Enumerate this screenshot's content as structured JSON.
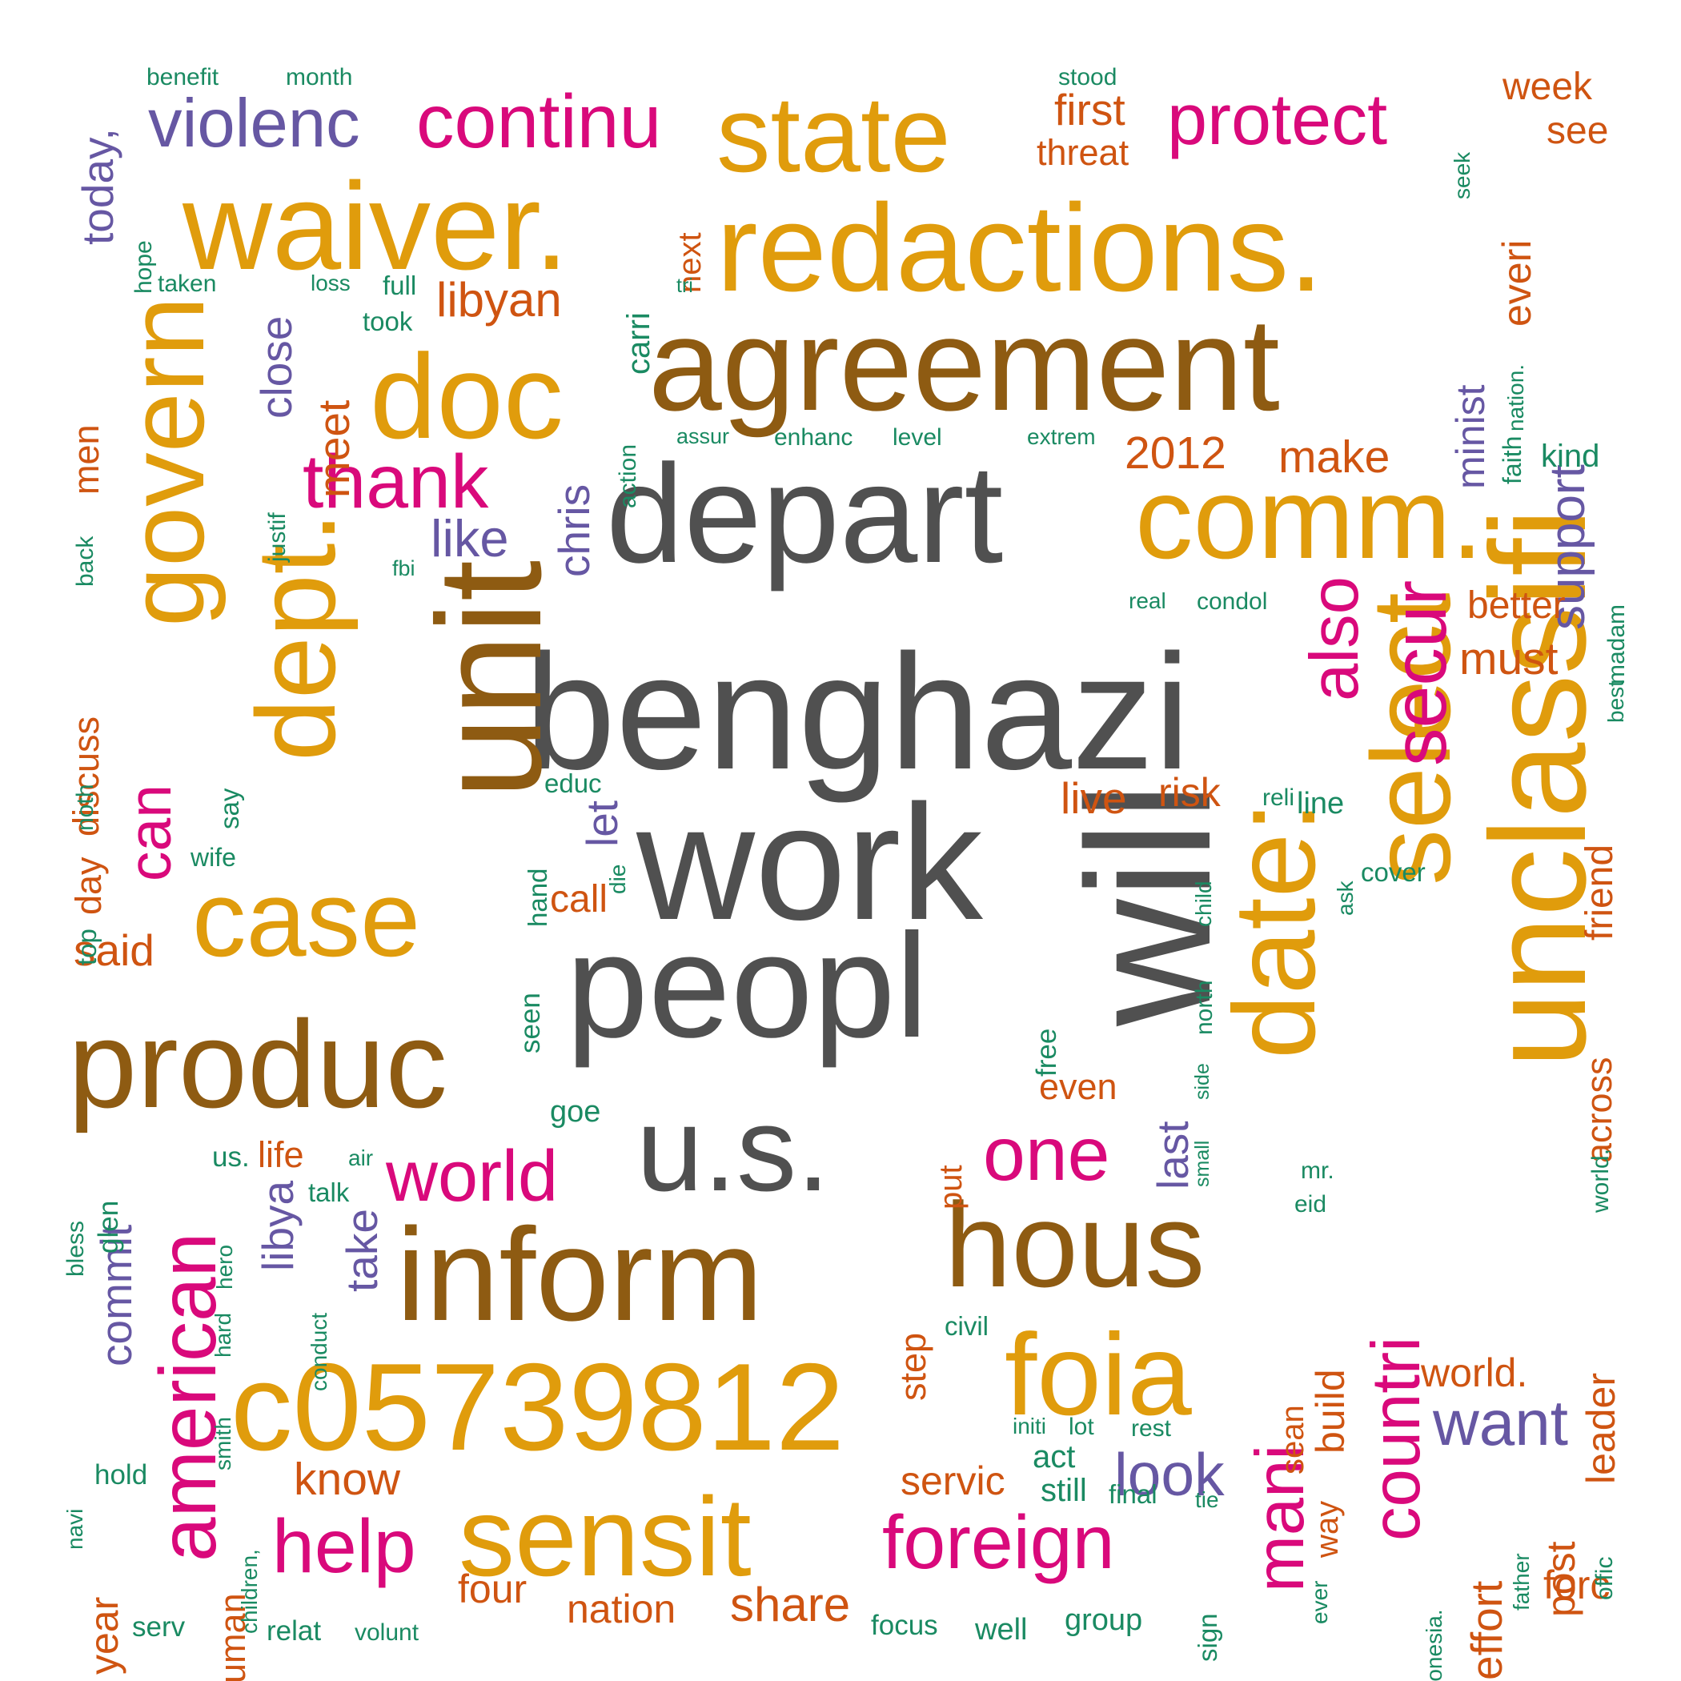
{
  "colors": {
    "gray": "#505050",
    "brown": "#8E5B12",
    "gold": "#E09C0C",
    "pink": "#D9097B",
    "purple": "#6657A3",
    "orange": "#CF5411",
    "green": "#1A8A62"
  },
  "words": [
    {
      "text": "benghazi",
      "color": "gray"
    },
    {
      "text": "work",
      "color": "gray"
    },
    {
      "text": "peopl",
      "color": "gray"
    },
    {
      "text": "depart",
      "color": "gray"
    },
    {
      "text": "will",
      "color": "gray"
    },
    {
      "text": "u.s.",
      "color": "gray"
    },
    {
      "text": "agreement",
      "color": "brown"
    },
    {
      "text": "inform",
      "color": "brown"
    },
    {
      "text": "produc",
      "color": "brown"
    },
    {
      "text": "unit",
      "color": "brown"
    },
    {
      "text": "hous",
      "color": "brown"
    },
    {
      "text": "redactions.",
      "color": "gold"
    },
    {
      "text": "waiver.",
      "color": "gold"
    },
    {
      "text": "state",
      "color": "gold"
    },
    {
      "text": "doc",
      "color": "gold"
    },
    {
      "text": "comm.",
      "color": "gold"
    },
    {
      "text": "govern",
      "color": "gold"
    },
    {
      "text": "dept.",
      "color": "gold"
    },
    {
      "text": "case",
      "color": "gold"
    },
    {
      "text": "c05739812",
      "color": "gold"
    },
    {
      "text": "sensit",
      "color": "gold"
    },
    {
      "text": "foia",
      "color": "gold"
    },
    {
      "text": "date:",
      "color": "gold"
    },
    {
      "text": "select",
      "color": "gold"
    },
    {
      "text": "unclassifi",
      "color": "gold"
    },
    {
      "text": "continu",
      "color": "pink"
    },
    {
      "text": "protect",
      "color": "pink"
    },
    {
      "text": "thank",
      "color": "pink"
    },
    {
      "text": "can",
      "color": "pink"
    },
    {
      "text": "american",
      "color": "pink"
    },
    {
      "text": "world",
      "color": "pink"
    },
    {
      "text": "help",
      "color": "pink"
    },
    {
      "text": "foreign",
      "color": "pink"
    },
    {
      "text": "one",
      "color": "pink"
    },
    {
      "text": "also",
      "color": "pink"
    },
    {
      "text": "secur",
      "color": "pink"
    },
    {
      "text": "countri",
      "color": "pink"
    },
    {
      "text": "mani",
      "color": "pink"
    },
    {
      "text": "violenc",
      "color": "purple"
    },
    {
      "text": "today,",
      "color": "purple"
    },
    {
      "text": "close",
      "color": "purple"
    },
    {
      "text": "like",
      "color": "purple"
    },
    {
      "text": "chris",
      "color": "purple"
    },
    {
      "text": "let",
      "color": "purple"
    },
    {
      "text": "libya",
      "color": "purple"
    },
    {
      "text": "take",
      "color": "purple"
    },
    {
      "text": "commit",
      "color": "purple"
    },
    {
      "text": "look",
      "color": "purple"
    },
    {
      "text": "want",
      "color": "purple"
    },
    {
      "text": "last",
      "color": "purple"
    },
    {
      "text": "minist",
      "color": "purple"
    },
    {
      "text": "support",
      "color": "purple"
    },
    {
      "text": "everi",
      "color": "orange"
    },
    {
      "text": "first",
      "color": "orange"
    },
    {
      "text": "threat",
      "color": "orange"
    },
    {
      "text": "week",
      "color": "orange"
    },
    {
      "text": "see",
      "color": "orange"
    },
    {
      "text": "next",
      "color": "orange"
    },
    {
      "text": "libyan",
      "color": "orange"
    },
    {
      "text": "meet",
      "color": "orange"
    },
    {
      "text": "men",
      "color": "orange"
    },
    {
      "text": "2012",
      "color": "orange"
    },
    {
      "text": "make",
      "color": "orange"
    },
    {
      "text": "better",
      "color": "orange"
    },
    {
      "text": "must",
      "color": "orange"
    },
    {
      "text": "friend",
      "color": "orange"
    },
    {
      "text": "discuss",
      "color": "orange"
    },
    {
      "text": "day",
      "color": "orange"
    },
    {
      "text": "said",
      "color": "orange"
    },
    {
      "text": "live",
      "color": "orange"
    },
    {
      "text": "risk",
      "color": "orange"
    },
    {
      "text": "call",
      "color": "orange"
    },
    {
      "text": "across",
      "color": "orange"
    },
    {
      "text": "even",
      "color": "orange"
    },
    {
      "text": "put",
      "color": "orange"
    },
    {
      "text": "life",
      "color": "orange"
    },
    {
      "text": "step",
      "color": "orange"
    },
    {
      "text": "build",
      "color": "orange"
    },
    {
      "text": "world.",
      "color": "orange"
    },
    {
      "text": "leader",
      "color": "orange"
    },
    {
      "text": "year",
      "color": "orange"
    },
    {
      "text": "human",
      "color": "orange"
    },
    {
      "text": "know",
      "color": "orange"
    },
    {
      "text": "servic",
      "color": "orange"
    },
    {
      "text": "sean",
      "color": "orange"
    },
    {
      "text": "four",
      "color": "orange"
    },
    {
      "text": "nation",
      "color": "orange"
    },
    {
      "text": "share",
      "color": "orange"
    },
    {
      "text": "post",
      "color": "orange"
    },
    {
      "text": "effort",
      "color": "orange"
    },
    {
      "text": "forc",
      "color": "orange"
    },
    {
      "text": "way",
      "color": "orange"
    },
    {
      "text": "benefit",
      "color": "green"
    },
    {
      "text": "month",
      "color": "green"
    },
    {
      "text": "stood",
      "color": "green"
    },
    {
      "text": "seek",
      "color": "green"
    },
    {
      "text": "hope",
      "color": "green"
    },
    {
      "text": "taken",
      "color": "green"
    },
    {
      "text": "loss",
      "color": "green"
    },
    {
      "text": "full",
      "color": "green"
    },
    {
      "text": "took",
      "color": "green"
    },
    {
      "text": "tri",
      "color": "green"
    },
    {
      "text": "carri",
      "color": "green"
    },
    {
      "text": "action",
      "color": "green"
    },
    {
      "text": "nation.",
      "color": "green"
    },
    {
      "text": "faith",
      "color": "green"
    },
    {
      "text": "assur",
      "color": "green"
    },
    {
      "text": "enhanc",
      "color": "green"
    },
    {
      "text": "level",
      "color": "green"
    },
    {
      "text": "extrem",
      "color": "green"
    },
    {
      "text": "kind",
      "color": "green"
    },
    {
      "text": "justif",
      "color": "green"
    },
    {
      "text": "back",
      "color": "green"
    },
    {
      "text": "fbi",
      "color": "green"
    },
    {
      "text": "real",
      "color": "green"
    },
    {
      "text": "condol",
      "color": "green"
    },
    {
      "text": "madam",
      "color": "green"
    },
    {
      "text": "best",
      "color": "green"
    },
    {
      "text": "noth",
      "color": "green"
    },
    {
      "text": "say",
      "color": "green"
    },
    {
      "text": "educ",
      "color": "green"
    },
    {
      "text": "hand",
      "color": "green"
    },
    {
      "text": "die",
      "color": "green"
    },
    {
      "text": "reli",
      "color": "green"
    },
    {
      "text": "line",
      "color": "green"
    },
    {
      "text": "wife",
      "color": "green"
    },
    {
      "text": "child",
      "color": "green"
    },
    {
      "text": "ask",
      "color": "green"
    },
    {
      "text": "cover",
      "color": "green"
    },
    {
      "text": "top",
      "color": "green"
    },
    {
      "text": "seen",
      "color": "green"
    },
    {
      "text": "free",
      "color": "green"
    },
    {
      "text": "north",
      "color": "green"
    },
    {
      "text": "side",
      "color": "green"
    },
    {
      "text": "small",
      "color": "green"
    },
    {
      "text": "goe",
      "color": "green"
    },
    {
      "text": "world,",
      "color": "green"
    },
    {
      "text": "us.",
      "color": "green"
    },
    {
      "text": "air",
      "color": "green"
    },
    {
      "text": "mr.",
      "color": "green"
    },
    {
      "text": "eid",
      "color": "green"
    },
    {
      "text": "bless",
      "color": "green"
    },
    {
      "text": "glen",
      "color": "green"
    },
    {
      "text": "talk",
      "color": "green"
    },
    {
      "text": "hero",
      "color": "green"
    },
    {
      "text": "hard",
      "color": "green"
    },
    {
      "text": "conduct",
      "color": "green"
    },
    {
      "text": "civil",
      "color": "green"
    },
    {
      "text": "smith",
      "color": "green"
    },
    {
      "text": "initi",
      "color": "green"
    },
    {
      "text": "lot",
      "color": "green"
    },
    {
      "text": "rest",
      "color": "green"
    },
    {
      "text": "act",
      "color": "green"
    },
    {
      "text": "hold",
      "color": "green"
    },
    {
      "text": "navi",
      "color": "green"
    },
    {
      "text": "children,",
      "color": "green"
    },
    {
      "text": "still",
      "color": "green"
    },
    {
      "text": "final",
      "color": "green"
    },
    {
      "text": "tie",
      "color": "green"
    },
    {
      "text": "indonesia.",
      "color": "green"
    },
    {
      "text": "father",
      "color": "green"
    },
    {
      "text": "offic",
      "color": "green"
    },
    {
      "text": "ever",
      "color": "green"
    },
    {
      "text": "sign",
      "color": "green"
    },
    {
      "text": "serv",
      "color": "green"
    },
    {
      "text": "relat",
      "color": "green"
    },
    {
      "text": "volunt",
      "color": "green"
    },
    {
      "text": "focus",
      "color": "green"
    },
    {
      "text": "well",
      "color": "green"
    },
    {
      "text": "group",
      "color": "green"
    }
  ]
}
